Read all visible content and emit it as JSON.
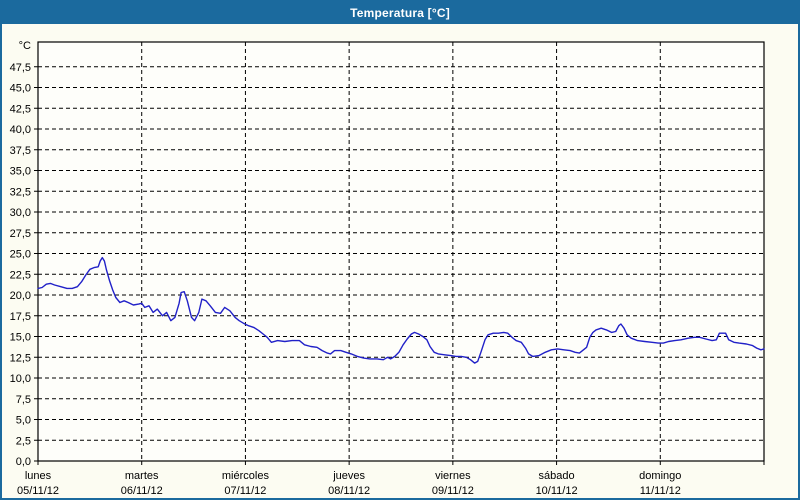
{
  "window": {
    "title": "Temperatura [°C]"
  },
  "colors": {
    "titlebar_bg": "#1b6a9e",
    "frame_border": "#1b6a9e",
    "page_bg": "#fcfcf2",
    "plot_bg": "#fefefa",
    "grid": "#000000",
    "axis": "#000000",
    "line": "#2121c8",
    "title_text": "#ffffff",
    "label_text": "#000000"
  },
  "chart_data": {
    "type": "line",
    "title": "Temperatura [°C]",
    "grid": "dashed",
    "legend_position": "none",
    "y_axis": {
      "unit_label": "°C",
      "min": 0,
      "max": 50,
      "tick_step": 2.5,
      "tick_labels_top_to_bottom": [
        "47,5",
        "45,0",
        "42,5",
        "40,0",
        "37,5",
        "35,0",
        "32,5",
        "30,0",
        "27,5",
        "25,0",
        "22,5",
        "20,0",
        "17,5",
        "15,0",
        "12,5",
        "10,0",
        "7,5",
        "5,0",
        "2,5",
        "0,0"
      ]
    },
    "x_axis": {
      "days": [
        {
          "name": "lunes",
          "date": "05/11/12"
        },
        {
          "name": "martes",
          "date": "06/11/12"
        },
        {
          "name": "miércoles",
          "date": "07/11/12"
        },
        {
          "name": "jueves",
          "date": "08/11/12"
        },
        {
          "name": "viernes",
          "date": "09/11/12"
        },
        {
          "name": "sábado",
          "date": "10/11/12"
        },
        {
          "name": "domingo",
          "date": "11/11/12"
        }
      ],
      "span_days": 7
    },
    "series": [
      {
        "name": "Temperatura",
        "color": "#2121c8",
        "points": [
          [
            0.0,
            20.8
          ],
          [
            0.04,
            20.9
          ],
          [
            0.08,
            21.3
          ],
          [
            0.12,
            21.4
          ],
          [
            0.16,
            21.2
          ],
          [
            0.22,
            21.0
          ],
          [
            0.28,
            20.8
          ],
          [
            0.33,
            20.8
          ],
          [
            0.38,
            21.0
          ],
          [
            0.42,
            21.6
          ],
          [
            0.46,
            22.4
          ],
          [
            0.5,
            23.1
          ],
          [
            0.54,
            23.3
          ],
          [
            0.58,
            23.4
          ],
          [
            0.6,
            24.1
          ],
          [
            0.62,
            24.5
          ],
          [
            0.64,
            24.1
          ],
          [
            0.66,
            23.0
          ],
          [
            0.69,
            21.7
          ],
          [
            0.72,
            20.6
          ],
          [
            0.75,
            19.7
          ],
          [
            0.79,
            19.1
          ],
          [
            0.83,
            19.3
          ],
          [
            0.87,
            19.1
          ],
          [
            0.92,
            18.8
          ],
          [
            0.97,
            18.9
          ],
          [
            1.0,
            19.0
          ],
          [
            1.03,
            18.5
          ],
          [
            1.07,
            18.7
          ],
          [
            1.11,
            17.9
          ],
          [
            1.15,
            18.3
          ],
          [
            1.2,
            17.5
          ],
          [
            1.24,
            17.9
          ],
          [
            1.28,
            16.9
          ],
          [
            1.32,
            17.3
          ],
          [
            1.36,
            19.0
          ],
          [
            1.38,
            20.3
          ],
          [
            1.41,
            20.4
          ],
          [
            1.44,
            19.3
          ],
          [
            1.48,
            17.3
          ],
          [
            1.51,
            16.9
          ],
          [
            1.55,
            17.9
          ],
          [
            1.58,
            19.5
          ],
          [
            1.62,
            19.3
          ],
          [
            1.66,
            18.7
          ],
          [
            1.71,
            17.9
          ],
          [
            1.76,
            17.8
          ],
          [
            1.8,
            18.5
          ],
          [
            1.85,
            18.1
          ],
          [
            1.9,
            17.3
          ],
          [
            1.94,
            16.9
          ],
          [
            1.98,
            16.6
          ],
          [
            2.03,
            16.3
          ],
          [
            2.08,
            16.1
          ],
          [
            2.13,
            15.7
          ],
          [
            2.17,
            15.3
          ],
          [
            2.21,
            14.9
          ],
          [
            2.25,
            14.3
          ],
          [
            2.31,
            14.5
          ],
          [
            2.38,
            14.4
          ],
          [
            2.45,
            14.5
          ],
          [
            2.52,
            14.5
          ],
          [
            2.57,
            14.0
          ],
          [
            2.63,
            13.8
          ],
          [
            2.69,
            13.7
          ],
          [
            2.74,
            13.3
          ],
          [
            2.79,
            13.0
          ],
          [
            2.82,
            12.9
          ],
          [
            2.86,
            13.3
          ],
          [
            2.92,
            13.3
          ],
          [
            2.97,
            13.1
          ],
          [
            3.02,
            12.9
          ],
          [
            3.08,
            12.6
          ],
          [
            3.14,
            12.4
          ],
          [
            3.2,
            12.3
          ],
          [
            3.27,
            12.3
          ],
          [
            3.33,
            12.2
          ],
          [
            3.37,
            12.5
          ],
          [
            3.4,
            12.3
          ],
          [
            3.44,
            12.6
          ],
          [
            3.48,
            13.1
          ],
          [
            3.52,
            14.0
          ],
          [
            3.56,
            14.7
          ],
          [
            3.6,
            15.3
          ],
          [
            3.63,
            15.5
          ],
          [
            3.67,
            15.3
          ],
          [
            3.71,
            15.0
          ],
          [
            3.75,
            14.6
          ],
          [
            3.78,
            13.8
          ],
          [
            3.82,
            13.1
          ],
          [
            3.86,
            12.9
          ],
          [
            3.92,
            12.8
          ],
          [
            3.98,
            12.7
          ],
          [
            4.03,
            12.6
          ],
          [
            4.08,
            12.6
          ],
          [
            4.13,
            12.5
          ],
          [
            4.17,
            12.2
          ],
          [
            4.21,
            11.8
          ],
          [
            4.24,
            12.0
          ],
          [
            4.27,
            13.1
          ],
          [
            4.31,
            14.6
          ],
          [
            4.34,
            15.2
          ],
          [
            4.39,
            15.4
          ],
          [
            4.44,
            15.4
          ],
          [
            4.49,
            15.5
          ],
          [
            4.53,
            15.4
          ],
          [
            4.57,
            14.9
          ],
          [
            4.61,
            14.5
          ],
          [
            4.66,
            14.3
          ],
          [
            4.7,
            13.6
          ],
          [
            4.73,
            12.9
          ],
          [
            4.77,
            12.6
          ],
          [
            4.83,
            12.7
          ],
          [
            4.89,
            13.1
          ],
          [
            4.95,
            13.4
          ],
          [
            5.01,
            13.5
          ],
          [
            5.07,
            13.4
          ],
          [
            5.13,
            13.3
          ],
          [
            5.18,
            13.1
          ],
          [
            5.22,
            13.0
          ],
          [
            5.26,
            13.4
          ],
          [
            5.29,
            13.7
          ],
          [
            5.32,
            14.9
          ],
          [
            5.35,
            15.5
          ],
          [
            5.38,
            15.8
          ],
          [
            5.43,
            16.0
          ],
          [
            5.48,
            15.8
          ],
          [
            5.53,
            15.5
          ],
          [
            5.57,
            15.6
          ],
          [
            5.6,
            16.3
          ],
          [
            5.62,
            16.5
          ],
          [
            5.65,
            16.0
          ],
          [
            5.68,
            15.2
          ],
          [
            5.72,
            14.8
          ],
          [
            5.78,
            14.5
          ],
          [
            5.85,
            14.4
          ],
          [
            5.92,
            14.3
          ],
          [
            5.98,
            14.2
          ],
          [
            6.03,
            14.2
          ],
          [
            6.08,
            14.4
          ],
          [
            6.14,
            14.5
          ],
          [
            6.2,
            14.6
          ],
          [
            6.27,
            14.8
          ],
          [
            6.33,
            14.9
          ],
          [
            6.38,
            14.9
          ],
          [
            6.44,
            14.7
          ],
          [
            6.5,
            14.5
          ],
          [
            6.54,
            14.6
          ],
          [
            6.57,
            15.4
          ],
          [
            6.63,
            15.4
          ],
          [
            6.66,
            14.6
          ],
          [
            6.71,
            14.3
          ],
          [
            6.76,
            14.2
          ],
          [
            6.83,
            14.1
          ],
          [
            6.89,
            13.9
          ],
          [
            6.93,
            13.6
          ],
          [
            6.97,
            13.4
          ],
          [
            7.0,
            13.5
          ]
        ]
      }
    ]
  }
}
